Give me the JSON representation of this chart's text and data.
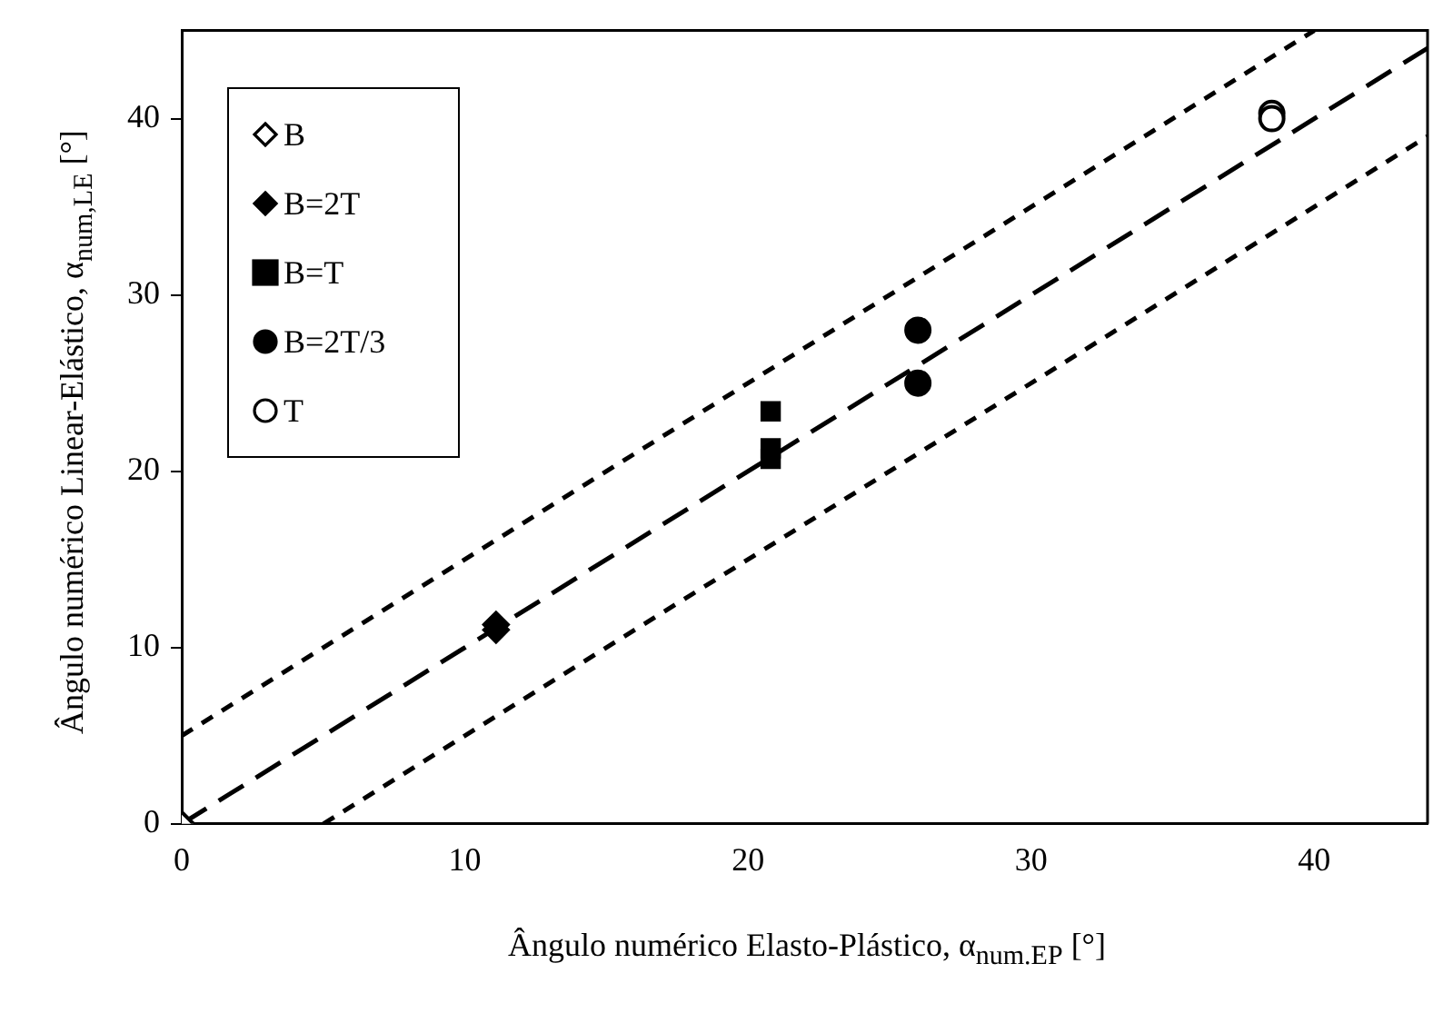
{
  "chart_data": {
    "type": "scatter",
    "xlabel": "Ângulo numérico Elasto-Plástico, α$_{num.EP}$ [°]",
    "ylabel": "Ângulo numérico Linear-Elástico, α$_{num,LE}$ [°]",
    "xlim": [
      0,
      44
    ],
    "ylim": [
      0,
      45
    ],
    "xticks": [
      0,
      10,
      20,
      30,
      40
    ],
    "yticks": [
      0,
      10,
      20,
      30,
      40
    ],
    "grid": false,
    "legend": "top left",
    "series": [
      {
        "name": "B",
        "marker": "diamond",
        "color": "#ffffff",
        "x": [
          0
        ],
        "values": [
          0
        ]
      },
      {
        "name": "B=2T",
        "marker": "diamond",
        "color": "#000000",
        "x": [
          11.1,
          11.1
        ],
        "values": [
          11.3,
          11.0
        ]
      },
      {
        "name": "B=T",
        "marker": "square",
        "color": "#000000",
        "x": [
          20.8,
          20.8,
          20.8
        ],
        "values": [
          23.4,
          21.3,
          20.7
        ]
      },
      {
        "name": "B=2T/3",
        "marker": "circle",
        "color": "#000000",
        "x": [
          26,
          26
        ],
        "values": [
          28,
          25
        ]
      },
      {
        "name": "T",
        "marker": "circle",
        "color": "#ffffff",
        "x": [
          38.5,
          38.5
        ],
        "values": [
          40.3,
          40.0
        ]
      },
      {
        "type": "line",
        "line_style": "dashed",
        "marker": "none",
        "color": "#000000",
        "x": [
          0,
          44
        ],
        "values": [
          0,
          44
        ]
      },
      {
        "type": "line",
        "line_style": "dotted",
        "marker": "none",
        "color": "#000000",
        "x": [
          0,
          40
        ],
        "values": [
          5,
          45
        ]
      },
      {
        "type": "line",
        "line_style": "dotted",
        "marker": "none",
        "color": "#000000",
        "x": [
          5,
          44
        ],
        "values": [
          0,
          39
        ]
      }
    ]
  }
}
